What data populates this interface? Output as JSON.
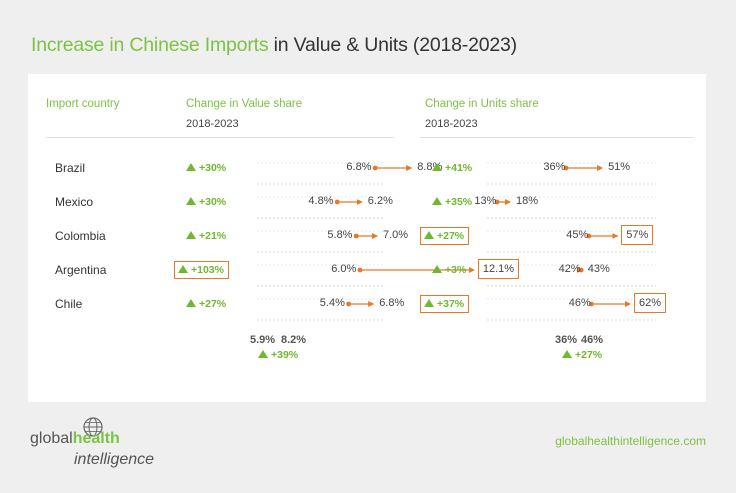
{
  "title": {
    "highlight": "Increase in Chinese Imports",
    "rest": " in Value & Units (2018-2023)"
  },
  "headers": {
    "country": "Import country",
    "value": "Change in Value share",
    "value_sub": "2018-2023",
    "units": "Change in Units share",
    "units_sub": "2018-2023"
  },
  "chart_data": [
    {
      "type": "dumbbell",
      "title": "Change in Value share",
      "subtitle": "2018-2023",
      "categories": [
        "Brazil",
        "Mexico",
        "Colombia",
        "Argentina",
        "Chile"
      ],
      "series": [
        {
          "name": "2018",
          "values": [
            6.8,
            4.8,
            5.8,
            6.0,
            5.4
          ],
          "labels": [
            "6.8%",
            "4.8%",
            "5.8%",
            "6.0%",
            "5.4%"
          ]
        },
        {
          "name": "2023",
          "values": [
            8.8,
            6.2,
            7.0,
            12.1,
            6.8
          ],
          "labels": [
            "8.8%",
            "6.2%",
            "7.0%",
            "12.1%",
            "6.8%"
          ]
        }
      ],
      "change_labels": [
        "+30%",
        "+30%",
        "+21%",
        "+103%",
        "+27%"
      ],
      "highlighted": [
        3
      ],
      "totals": {
        "from": "5.9%",
        "to": "8.2%",
        "change": "+39%"
      }
    },
    {
      "type": "dumbbell",
      "title": "Change in Units share",
      "subtitle": "2018-2023",
      "categories": [
        "Brazil",
        "Mexico",
        "Colombia",
        "Argentina",
        "Chile"
      ],
      "series": [
        {
          "name": "2018",
          "values": [
            36,
            13,
            45,
            42,
            46
          ],
          "labels": [
            "36%",
            "13%",
            "45%",
            "42%",
            "46%"
          ]
        },
        {
          "name": "2023",
          "values": [
            51,
            18,
            57,
            43,
            62
          ],
          "labels": [
            "51%",
            "18%",
            "57%",
            "43%",
            "62%"
          ]
        }
      ],
      "change_labels": [
        "+41%",
        "+35%",
        "+27%",
        "+3%",
        "+37%"
      ],
      "highlighted": [
        2,
        4
      ],
      "totals": {
        "from": "36%",
        "to": "46%",
        "change": "+27%"
      }
    }
  ],
  "colors": {
    "accent": "#7cc243",
    "arrow": "#e37a2b",
    "text": "#333333"
  },
  "logo": {
    "part1": "global",
    "part2": "health",
    "part3": "intelligence",
    "icon": "globe-icon"
  },
  "website": "globalhealthintelligence.com"
}
